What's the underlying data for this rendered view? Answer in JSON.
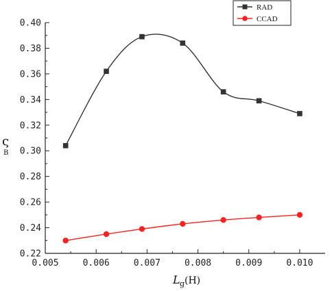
{
  "chart_data": {
    "type": "line",
    "x": [
      0.0054,
      0.0062,
      0.0069,
      0.0077,
      0.0085,
      0.0092,
      0.01
    ],
    "series": [
      {
        "name": "RAD",
        "values": [
          0.304,
          0.362,
          0.389,
          0.384,
          0.346,
          0.339,
          0.329
        ],
        "color": "#333333",
        "marker": "square",
        "smooth": true
      },
      {
        "name": "CCAD",
        "values": [
          0.23,
          0.235,
          0.239,
          0.243,
          0.246,
          0.248,
          0.25
        ],
        "color": "#ff2020",
        "marker": "circle",
        "smooth": true
      }
    ],
    "xlim": [
      0.005,
      0.0105
    ],
    "ylim": [
      0.22,
      0.4
    ],
    "xticks": [
      0.005,
      0.006,
      0.007,
      0.008,
      0.009,
      0.01
    ],
    "xtick_labels": [
      "0.005",
      "0.006",
      "0.007",
      "0.008",
      "0.009",
      "0.010"
    ],
    "yticks": [
      0.22,
      0.24,
      0.26,
      0.28,
      0.3,
      0.32,
      0.34,
      0.36,
      0.38,
      0.4
    ],
    "ytick_labels": [
      "0.22",
      "0.24",
      "0.26",
      "0.28",
      "0.30",
      "0.32",
      "0.34",
      "0.36",
      "0.38",
      "0.40"
    ],
    "xlabel": {
      "main": "L",
      "sub": "g",
      "unit": "(H)"
    },
    "ylabel": {
      "main": "ς",
      "sub": "B"
    },
    "legend_position": "top-right",
    "grid": false
  }
}
